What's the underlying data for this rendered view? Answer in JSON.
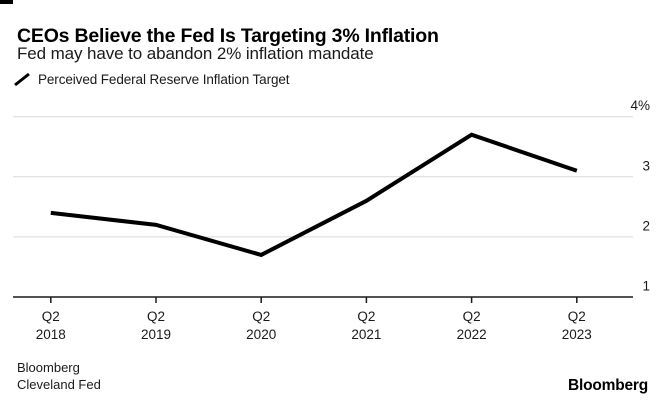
{
  "header": {
    "title": "CEOs Believe the Fed Is Targeting 3% Inflation",
    "subtitle": "Fed may have to abandon 2% inflation mandate"
  },
  "legend": {
    "label": "Perceived Federal Reserve Inflation Target",
    "marker": "diagonal-line-swatch"
  },
  "chart_data": {
    "type": "line",
    "title": "CEOs Believe the Fed Is Targeting 3% Inflation",
    "subtitle": "Fed may have to abandon 2% inflation mandate",
    "categories": [
      "Q2 2018",
      "Q2 2019",
      "Q2 2020",
      "Q2 2021",
      "Q2 2022",
      "Q2 2023"
    ],
    "x_tick_quarter": "Q2",
    "x_tick_years": [
      "2018",
      "2019",
      "2020",
      "2021",
      "2022",
      "2023"
    ],
    "series": [
      {
        "name": "Perceived Federal Reserve Inflation Target",
        "values": [
          2.4,
          2.2,
          1.7,
          2.6,
          3.7,
          3.1
        ]
      }
    ],
    "unit": "%",
    "ylim": [
      1,
      4
    ],
    "y_ticks": [
      {
        "value": 4,
        "label": "4%"
      },
      {
        "value": 3,
        "label": "3"
      },
      {
        "value": 2,
        "label": "2"
      },
      {
        "value": 1,
        "label": "1"
      }
    ],
    "grid": "horizontal",
    "legend_position": "top-left",
    "line_color": "#000000",
    "grid_color": "#d9d9d9",
    "axis_color": "#1a1a1a",
    "label_color": "#1a1a1a"
  },
  "footer": {
    "source_line1": "Bloomberg",
    "source_line2": "Cleveland Fed",
    "brand": "Bloomberg"
  }
}
